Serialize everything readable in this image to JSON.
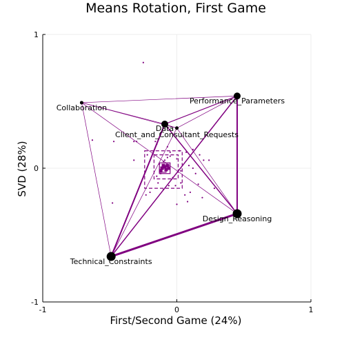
{
  "chart_data": {
    "type": "scatter",
    "title": "Means Rotation, First Game",
    "xlabel": "First/Second Game (24%)",
    "ylabel": "SVD (28%)",
    "xlim": [
      -1,
      1
    ],
    "ylim": [
      -1,
      1
    ],
    "xticks": [
      "-1",
      "0",
      "1"
    ],
    "yticks": [
      "-1",
      "0",
      "1"
    ],
    "grid": true,
    "colors": {
      "edge": "#800080",
      "node": "#000000",
      "grid": "#ececec"
    },
    "nodes": [
      {
        "name": "Performance_Parameters",
        "x": 0.45,
        "y": 0.54,
        "size": "medium"
      },
      {
        "name": "Collaboration",
        "x": -0.71,
        "y": 0.49,
        "size": "small"
      },
      {
        "name": "Data",
        "x": -0.09,
        "y": 0.33,
        "size": "medium"
      },
      {
        "name": "Client_and_Consultant_Requests",
        "x": 0.0,
        "y": 0.3,
        "size": "small"
      },
      {
        "name": "Design_Reasoning",
        "x": 0.45,
        "y": -0.34,
        "size": "large"
      },
      {
        "name": "Technical_Constraints",
        "x": -0.49,
        "y": -0.66,
        "size": "large"
      }
    ],
    "edges": [
      {
        "from": "Technical_Constraints",
        "to": "Design_Reasoning",
        "weight": 3
      },
      {
        "from": "Technical_Constraints",
        "to": "Data",
        "weight": 2
      },
      {
        "from": "Technical_Constraints",
        "to": "Performance_Parameters",
        "weight": 1.5
      },
      {
        "from": "Technical_Constraints",
        "to": "Client_and_Consultant_Requests",
        "weight": 0.7
      },
      {
        "from": "Technical_Constraints",
        "to": "Collaboration",
        "weight": 0.7
      },
      {
        "from": "Design_Reasoning",
        "to": "Performance_Parameters",
        "weight": 2
      },
      {
        "from": "Design_Reasoning",
        "to": "Data",
        "weight": 1.5
      },
      {
        "from": "Design_Reasoning",
        "to": "Collaboration",
        "weight": 0.7
      },
      {
        "from": "Design_Reasoning",
        "to": "Client_and_Consultant_Requests",
        "weight": 0.7
      },
      {
        "from": "Performance_Parameters",
        "to": "Data",
        "weight": 1.2
      },
      {
        "from": "Performance_Parameters",
        "to": "Collaboration",
        "weight": 0.7
      },
      {
        "from": "Performance_Parameters",
        "to": "Client_and_Consultant_Requests",
        "weight": 0.7
      },
      {
        "from": "Collaboration",
        "to": "Data",
        "weight": 0.7
      },
      {
        "from": "Collaboration",
        "to": "Client_and_Consultant_Requests",
        "weight": 0.6
      },
      {
        "from": "Data",
        "to": "Client_and_Consultant_Requests",
        "weight": 0.6
      }
    ],
    "points": [
      [
        -0.25,
        0.79
      ],
      [
        -0.47,
        0.2
      ],
      [
        -0.63,
        0.21
      ],
      [
        -0.32,
        0.2
      ],
      [
        -0.3,
        0.2
      ],
      [
        -0.32,
        0.06
      ],
      [
        -0.48,
        -0.26
      ],
      [
        -0.22,
        0.1
      ],
      [
        -0.16,
        0.2
      ],
      [
        -0.15,
        0.18
      ],
      [
        -0.07,
        0.16
      ],
      [
        -0.05,
        0.12
      ],
      [
        0.02,
        0.13
      ],
      [
        0.07,
        0.12
      ],
      [
        0.12,
        0.14
      ],
      [
        0.17,
        0.1
      ],
      [
        0.2,
        0.06
      ],
      [
        0.24,
        0.06
      ],
      [
        0.09,
        0.02
      ],
      [
        0.12,
        0.0
      ],
      [
        0.14,
        -0.04
      ],
      [
        0.03,
        -0.11
      ],
      [
        -0.01,
        -0.13
      ],
      [
        0.06,
        -0.2
      ],
      [
        0.1,
        -0.18
      ],
      [
        0.16,
        -0.12
      ],
      [
        0.19,
        -0.22
      ],
      [
        0.28,
        -0.15
      ],
      [
        -0.2,
        -0.18
      ],
      [
        -0.23,
        -0.2
      ],
      [
        -0.14,
        -0.11
      ],
      [
        -0.06,
        -0.13
      ],
      [
        -0.1,
        -0.16
      ],
      [
        0.08,
        -0.25
      ],
      [
        0.0,
        -0.27
      ],
      [
        -0.12,
        -0.04
      ],
      [
        -0.1,
        0.05
      ],
      [
        -0.13,
        0.03
      ],
      [
        -0.05,
        0.09
      ],
      [
        0.03,
        -0.02
      ],
      [
        -0.03,
        -0.07
      ],
      [
        -0.07,
        0.08
      ],
      [
        -0.09,
        0.06
      ],
      [
        -0.15,
        -0.06
      ],
      [
        0.0,
        0.07
      ]
    ],
    "centroid_boxes": [
      {
        "x": -0.1,
        "y": -0.01,
        "half": 0.14,
        "style": "dashed"
      },
      {
        "x": -0.08,
        "y": 0.01,
        "half": 0.09,
        "style": "dashed"
      },
      {
        "x": -0.09,
        "y": 0.0,
        "half": 0.04,
        "style": "solid"
      },
      {
        "x": -0.1,
        "y": -0.01,
        "half": 0.02,
        "style": "solid"
      }
    ],
    "cluster_markers": [
      [
        -0.11,
        0.0
      ],
      [
        -0.09,
        0.01
      ],
      [
        -0.07,
        0.02
      ],
      [
        -0.12,
        -0.02
      ],
      [
        -0.08,
        -0.01
      ],
      [
        -0.1,
        0.02
      ],
      [
        -0.06,
        0.0
      ]
    ]
  }
}
